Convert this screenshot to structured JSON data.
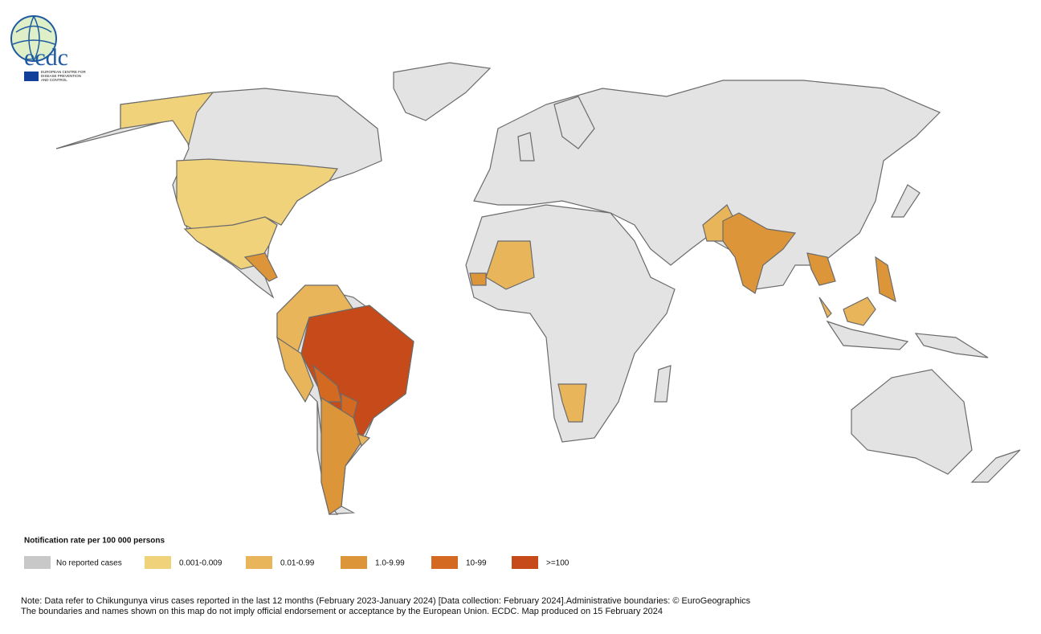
{
  "logo": {
    "acronym": "ecdc",
    "name_line1": "EUROPEAN CENTRE FOR",
    "name_line2": "DISEASE PREVENTION",
    "name_line3": "AND CONTROL"
  },
  "legend": {
    "title": "Notification rate per 100 000 persons",
    "items": [
      {
        "label": "No reported cases",
        "color": "#c8c8c8"
      },
      {
        "label": "0.001-0.009",
        "color": "#f0d27a"
      },
      {
        "label": "0.01-0.99",
        "color": "#e8b55a"
      },
      {
        "label": "1.0-9.99",
        "color": "#dc9538"
      },
      {
        "label": "10-99",
        "color": "#d46a22"
      },
      {
        "label": ">=100",
        "color": "#c64a1a"
      }
    ]
  },
  "note": {
    "line1": "Note: Data refer to Chikungunya virus cases reported in the last 12 months (February 2023-January 2024) [Data collection: February 2024].Administrative boundaries: © EuroGeographics",
    "line2": "The boundaries and names shown on this map do not imply official endorsement or acceptance by the European Union. ECDC. Map produced on 15 February 2024"
  }
}
